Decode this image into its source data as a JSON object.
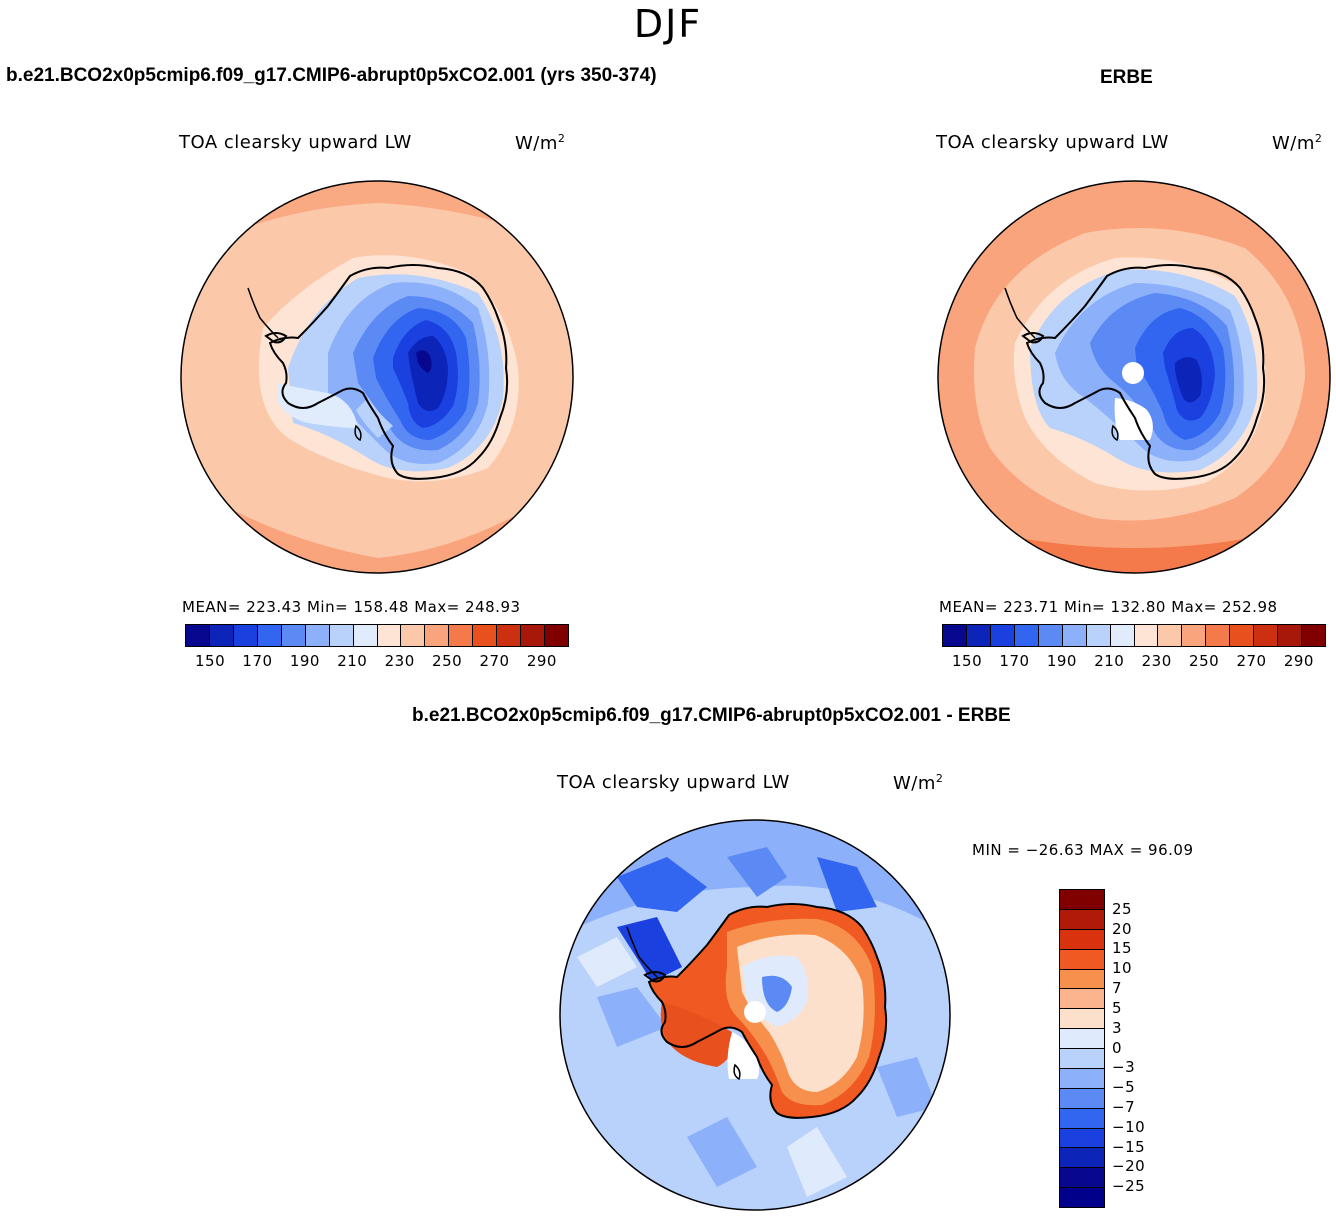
{
  "season": "DJF",
  "panels": {
    "model": {
      "header": "b.e21.BCO2x0p5cmip6.f09_g17.CMIP6-abrupt0p5xCO2.001 (yrs 350-374)",
      "field": "TOA clearsky upward LW",
      "units": "W/m",
      "units_sup": "2",
      "stats": "MEAN= 223.43   Min= 158.48   Max= 248.93"
    },
    "obs": {
      "header": "ERBE",
      "field": "TOA clearsky upward LW",
      "units": "W/m",
      "units_sup": "2",
      "stats": "MEAN= 223.71   Min= 132.80   Max= 252.98"
    },
    "diff": {
      "header": "b.e21.BCO2x0p5cmip6.f09_g17.CMIP6-abrupt0p5xCO2.001 - ERBE",
      "field": "TOA clearsky upward LW",
      "units": "W/m",
      "units_sup": "2",
      "stats": "MIN = −26.63 MAX =  96.09"
    }
  },
  "colorbar_main": {
    "tick_labels": [
      "150",
      "170",
      "190",
      "210",
      "230",
      "250",
      "270",
      "290"
    ],
    "colors": [
      "#08088f",
      "#0d24b8",
      "#1a40e0",
      "#3366f0",
      "#5c8af5",
      "#8cb0fa",
      "#b8d2fc",
      "#e0ecfc",
      "#fde4d4",
      "#fcc8aa",
      "#f9a47c",
      "#f47a4c",
      "#e8501e",
      "#cc3010",
      "#a8180a",
      "#800000"
    ]
  },
  "colorbar_diff": {
    "tick_labels": [
      "25",
      "20",
      "15",
      "10",
      "7",
      "5",
      "3",
      "0",
      "−3",
      "−5",
      "−7",
      "−10",
      "−15",
      "−20",
      "−25"
    ],
    "colors": [
      "#800000",
      "#b01a08",
      "#d8320e",
      "#f05a22",
      "#f7904c",
      "#fbb48c",
      "#fde0cc",
      "#dfeafc",
      "#b8d2fc",
      "#8cb0fa",
      "#5c8af5",
      "#3366f0",
      "#1a40e0",
      "#0d24b8",
      "#08088f",
      "#00008b"
    ]
  }
}
